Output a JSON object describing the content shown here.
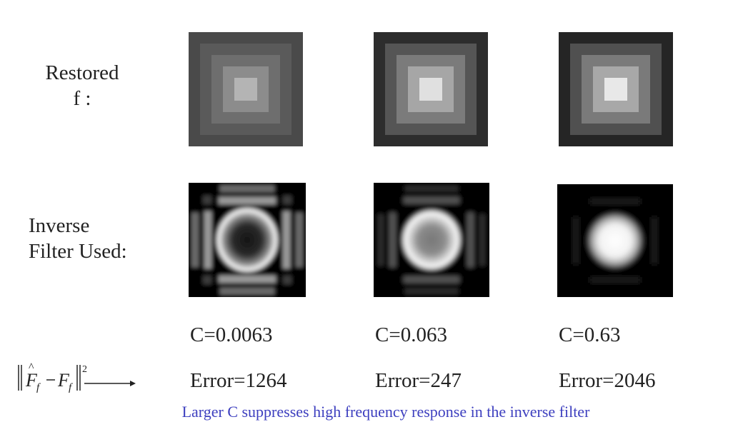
{
  "rows": {
    "restored": {
      "line1": "Restored",
      "line2": "f :"
    },
    "inverse": {
      "line1": "Inverse",
      "line2": "Filter Used:"
    }
  },
  "columns": [
    {
      "c_label": "C=0.0063",
      "error_label": "Error=1264",
      "restored_levels": [
        "#4a4a4a",
        "#5a5a5a",
        "#6e6e6e",
        "#8c8c8c",
        "#b4b4b4"
      ],
      "filter_sharpness": "low"
    },
    {
      "c_label": "C=0.063",
      "error_label": "Error=247",
      "restored_levels": [
        "#2d2d2d",
        "#555555",
        "#7b7b7b",
        "#a6a6a6",
        "#e0e0e0"
      ],
      "filter_sharpness": "medium"
    },
    {
      "c_label": "C=0.63",
      "error_label": "Error=2046",
      "restored_levels": [
        "#252525",
        "#505050",
        "#7a7a7a",
        "#a8a8a8",
        "#e8e8e8"
      ],
      "filter_sharpness": "high"
    }
  ],
  "error_metric": {
    "symbol_f": "F",
    "symbol_sub": "f",
    "exponent": "2"
  },
  "footer_note": "Larger C suppresses high frequency response in the inverse filter",
  "colors": {
    "footer_text": "#3d3fbf"
  }
}
